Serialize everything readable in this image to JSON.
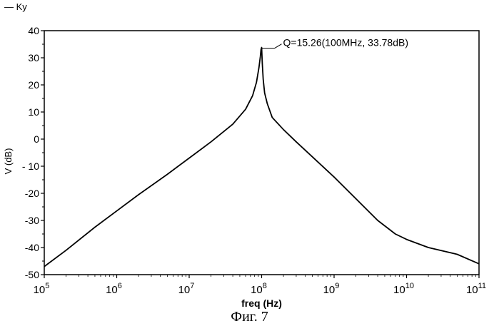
{
  "legend": {
    "label": "— Ky"
  },
  "caption": "Фиг. 7",
  "chart_data": {
    "type": "line",
    "title": "",
    "xlabel": "freq (Hz)",
    "ylabel": "V (dB)",
    "xscale": "log",
    "xlim": [
      100000,
      100000000000
    ],
    "ylim": [
      -50,
      40
    ],
    "grid": false,
    "legend_position": "top-left",
    "x_ticks": [
      {
        "value": 100000,
        "base": "10",
        "exp": "5"
      },
      {
        "value": 1000000,
        "base": "10",
        "exp": "6"
      },
      {
        "value": 10000000,
        "base": "10",
        "exp": "7"
      },
      {
        "value": 100000000,
        "base": "10",
        "exp": "8"
      },
      {
        "value": 1000000000,
        "base": "10",
        "exp": "9"
      },
      {
        "value": 10000000000,
        "base": "10",
        "exp": "10"
      },
      {
        "value": 100000000000,
        "base": "10",
        "exp": "11"
      }
    ],
    "y_ticks": [
      40,
      30,
      20,
      10,
      0,
      -10,
      -20,
      -30,
      -40,
      -50
    ],
    "y_tick_labels": [
      "40",
      "30",
      "20",
      "10",
      "0",
      "- 10",
      "-20",
      "-30",
      "-40",
      "-50"
    ],
    "series": [
      {
        "name": "Ky",
        "color": "#000000",
        "x": [
          100000,
          200000,
          500000,
          1000000,
          2000000,
          5000000,
          10000000,
          20000000,
          40000000,
          60000000,
          75000000,
          85000000,
          92000000,
          96000000,
          98000000,
          100000000,
          102000000,
          105000000,
          110000000,
          120000000,
          140000000,
          200000000,
          300000000,
          500000000,
          1000000000,
          2000000000,
          4000000000,
          7000000000,
          10000000000,
          20000000000,
          50000000000,
          100000000000
        ],
        "y": [
          -47,
          -41,
          -32.5,
          -26.5,
          -20.5,
          -13,
          -7,
          -1,
          5.5,
          11,
          16,
          21,
          26.5,
          30.5,
          33,
          33.78,
          28,
          22,
          17,
          13,
          8,
          3.5,
          -1,
          -6.5,
          -14,
          -22,
          -30,
          -35,
          -37,
          -40,
          -42.5,
          -46
        ]
      }
    ],
    "annotations": [
      {
        "text": "Q=15.26(100MHz, 33.78dB)",
        "x": 100000000,
        "y": 33.78
      }
    ]
  }
}
